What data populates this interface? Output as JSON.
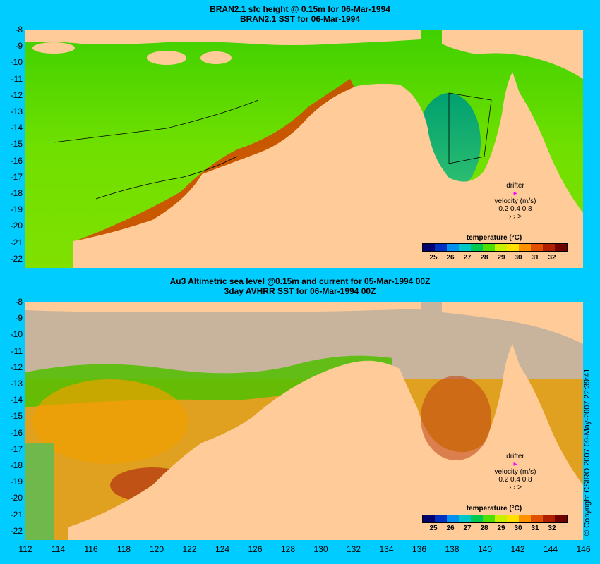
{
  "top": {
    "title_line1": "BRAN2.1 sfc height @ 0.15m for 06-Mar-1994",
    "title_line2": "BRAN2.1 SST for 06-Mar-1994"
  },
  "bottom": {
    "title_line1": "Au3 Altimetric sea level  @0.15m and current for 05-Mar-1994 00Z",
    "title_line2": "3day AVHRR SST for 06-Mar-1994 00Z"
  },
  "legend": {
    "title": "temperature (°C)",
    "ticks": [
      "25",
      "26",
      "27",
      "28",
      "29",
      "30",
      "31",
      "32"
    ],
    "colors": [
      "#00006e",
      "#0030c0",
      "#0090f0",
      "#00c8c8",
      "#00c850",
      "#50e000",
      "#c8f000",
      "#ffe000",
      "#ff9000",
      "#e05000",
      "#b02000",
      "#700000"
    ]
  },
  "drifter": {
    "label": "drifter",
    "velocity_label": "velocity (m/s)",
    "scale": "0.2 0.4 0.8",
    "arrows": "›  ›   >"
  },
  "y_ticks": [
    "-8",
    "-9",
    "-10",
    "-11",
    "-12",
    "-13",
    "-14",
    "-15",
    "-16",
    "-17",
    "-18",
    "-19",
    "-20",
    "-21",
    "-22"
  ],
  "x_ticks": [
    "112",
    "114",
    "116",
    "118",
    "120",
    "122",
    "124",
    "126",
    "128",
    "130",
    "132",
    "134",
    "136",
    "138",
    "140",
    "142",
    "144",
    "146"
  ],
  "copyright": "© Copyright CSIRO 2007   09-May-2007 22:39:41",
  "colors": {
    "background": "#00ccff",
    "land": "#ffcc99",
    "cloud": "#c8b49c",
    "sea_warm": "#ff9000",
    "sea_cool": "#00c850"
  }
}
